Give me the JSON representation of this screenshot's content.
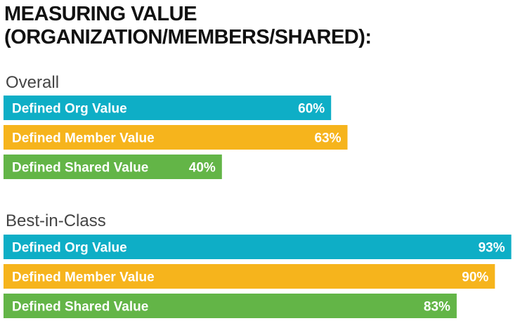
{
  "title": {
    "line1": "MEASURING VALUE",
    "line2": "(ORGANIZATION/MEMBERS/SHARED):"
  },
  "colors": {
    "org": "#0eaec6",
    "member": "#f6b41c",
    "shared": "#63b547"
  },
  "chart_data": {
    "type": "bar",
    "orientation": "horizontal",
    "xlim": [
      0,
      100
    ],
    "groups": [
      {
        "name": "Overall",
        "bars": [
          {
            "label": "Defined Org Value",
            "value": 60,
            "value_label": "60%",
            "color_key": "org"
          },
          {
            "label": "Defined Member Value",
            "value": 63,
            "value_label": "63%",
            "color_key": "member"
          },
          {
            "label": "Defined Shared Value",
            "value": 40,
            "value_label": "40%",
            "color_key": "shared"
          }
        ]
      },
      {
        "name": "Best-in-Class",
        "bars": [
          {
            "label": "Defined Org Value",
            "value": 93,
            "value_label": "93%",
            "color_key": "org"
          },
          {
            "label": "Defined Member Value",
            "value": 90,
            "value_label": "90%",
            "color_key": "member"
          },
          {
            "label": "Defined Shared Value",
            "value": 83,
            "value_label": "83%",
            "color_key": "shared"
          }
        ]
      }
    ]
  }
}
